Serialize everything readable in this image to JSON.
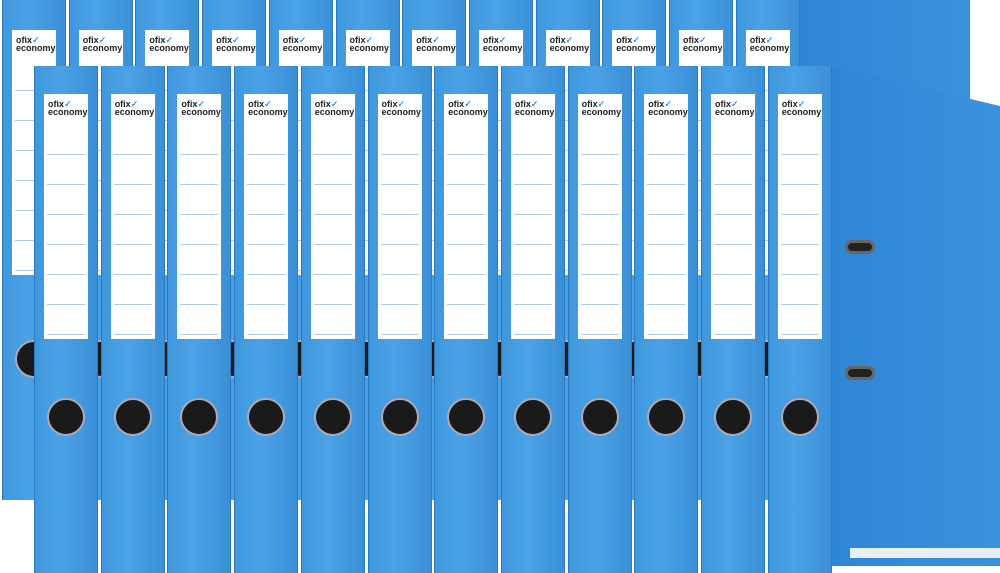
{
  "product": {
    "brand_top": "ofix",
    "brand_bottom": "economy",
    "color": "#3e96dc",
    "rows": 2,
    "binders_per_row": 12
  }
}
